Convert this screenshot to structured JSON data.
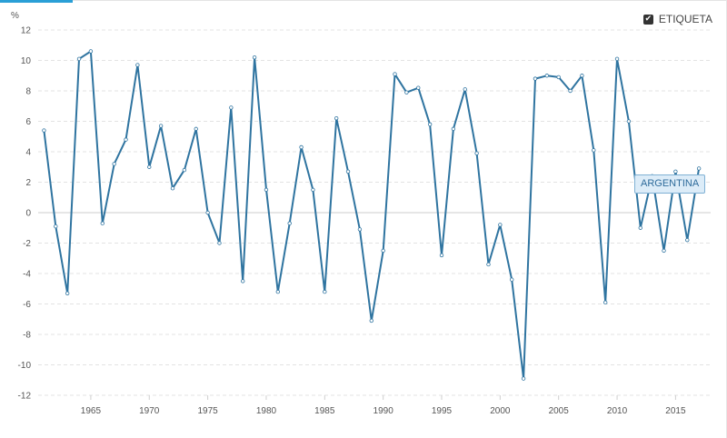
{
  "chart_data": {
    "type": "line",
    "title": "",
    "xlabel": "",
    "ylabel": "%",
    "ylim": [
      -12,
      12
    ],
    "yticks": [
      12,
      10,
      8,
      6,
      4,
      2,
      0,
      -2,
      -4,
      -6,
      -8,
      -10,
      -12
    ],
    "xlim": [
      1960.5,
      2018
    ],
    "xticks": [
      1965,
      1970,
      1975,
      1980,
      1985,
      1990,
      1995,
      2000,
      2005,
      2010,
      2015
    ],
    "grid": true,
    "series": [
      {
        "name": "ARGENTINA",
        "color": "#2f74a0",
        "x": [
          1961,
          1962,
          1963,
          1964,
          1965,
          1966,
          1967,
          1968,
          1969,
          1970,
          1971,
          1972,
          1973,
          1974,
          1975,
          1976,
          1977,
          1978,
          1979,
          1980,
          1981,
          1982,
          1983,
          1984,
          1985,
          1986,
          1987,
          1988,
          1989,
          1990,
          1991,
          1992,
          1993,
          1994,
          1995,
          1996,
          1997,
          1998,
          1999,
          2000,
          2001,
          2002,
          2003,
          2004,
          2005,
          2006,
          2007,
          2008,
          2009,
          2010,
          2011,
          2012,
          2013,
          2014,
          2015,
          2016,
          2017
        ],
        "values": [
          5.4,
          -0.9,
          -5.3,
          10.1,
          10.6,
          -0.7,
          3.2,
          4.8,
          9.7,
          3.0,
          5.7,
          1.6,
          2.8,
          5.5,
          0.0,
          -2.0,
          6.9,
          -4.5,
          10.2,
          1.5,
          -5.2,
          -0.7,
          4.3,
          1.5,
          -5.2,
          6.2,
          2.7,
          -1.1,
          -7.1,
          -2.5,
          9.1,
          7.9,
          8.2,
          5.8,
          -2.8,
          5.5,
          8.1,
          3.9,
          -3.4,
          -0.8,
          -4.4,
          -10.9,
          8.8,
          9.0,
          8.9,
          8.0,
          9.0,
          4.1,
          -5.9,
          10.1,
          6.0,
          -1.0,
          2.4,
          -2.5,
          2.7,
          -1.8,
          2.9
        ]
      }
    ]
  },
  "legend": {
    "label": "ETIQUETA",
    "check_glyph": "✔"
  },
  "tooltip": {
    "label": "ARGENTINA"
  }
}
